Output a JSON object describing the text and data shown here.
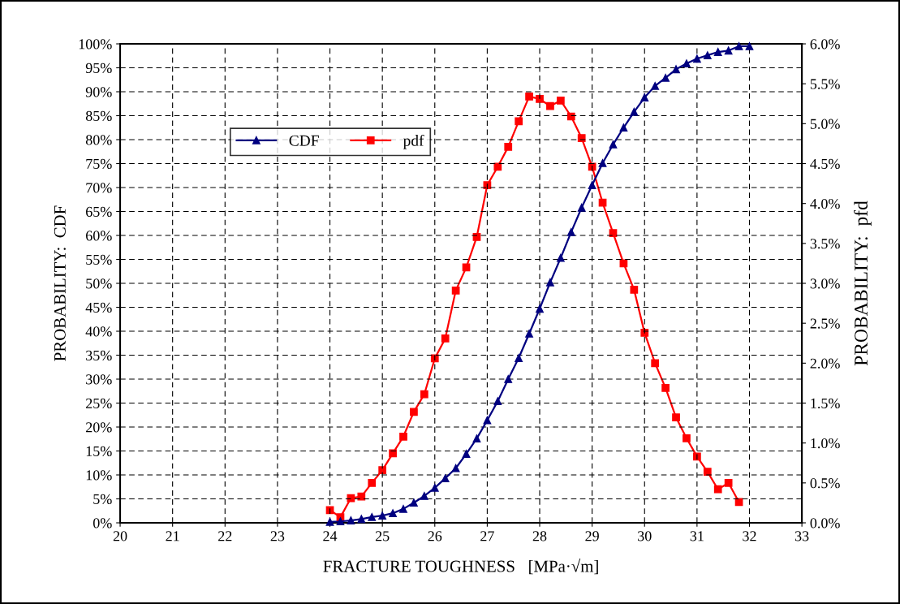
{
  "chart_data": {
    "type": "line",
    "xlabel": "FRACTURE TOUGHNESS   [MPa·√m]",
    "ylabel": "PROBABILITY:  CDF",
    "y2label": "PROBABILITY:  pfd",
    "xlim": [
      20,
      33
    ],
    "xticks": [
      20,
      21,
      22,
      23,
      24,
      25,
      26,
      27,
      28,
      29,
      30,
      31,
      32,
      33
    ],
    "ylim": [
      0,
      100
    ],
    "yticks": [
      {
        "value": 0,
        "label": "0%"
      },
      {
        "value": 5,
        "label": "5%"
      },
      {
        "value": 10,
        "label": "10%"
      },
      {
        "value": 15,
        "label": "15%"
      },
      {
        "value": 20,
        "label": "20%"
      },
      {
        "value": 25,
        "label": "25%"
      },
      {
        "value": 30,
        "label": "30%"
      },
      {
        "value": 35,
        "label": "35%"
      },
      {
        "value": 40,
        "label": "40%"
      },
      {
        "value": 45,
        "label": "45%"
      },
      {
        "value": 50,
        "label": "50%"
      },
      {
        "value": 55,
        "label": "55%"
      },
      {
        "value": 60,
        "label": "60%"
      },
      {
        "value": 65,
        "label": "65%"
      },
      {
        "value": 70,
        "label": "70%"
      },
      {
        "value": 75,
        "label": "75%"
      },
      {
        "value": 80,
        "label": "80%"
      },
      {
        "value": 85,
        "label": "85%"
      },
      {
        "value": 90,
        "label": "90%"
      },
      {
        "value": 95,
        "label": "95%"
      },
      {
        "value": 100,
        "label": "100%"
      }
    ],
    "y2lim": [
      0,
      6
    ],
    "y2ticks": [
      {
        "value": 0,
        "label": "0.0%"
      },
      {
        "value": 0.5,
        "label": "0.5%"
      },
      {
        "value": 1,
        "label": "1.0%"
      },
      {
        "value": 1.5,
        "label": "1.5%"
      },
      {
        "value": 2,
        "label": "2.0%"
      },
      {
        "value": 2.5,
        "label": "2.5%"
      },
      {
        "value": 3,
        "label": "3.0%"
      },
      {
        "value": 3.5,
        "label": "3.5%"
      },
      {
        "value": 4,
        "label": "4.0%"
      },
      {
        "value": 4.5,
        "label": "4.5%"
      },
      {
        "value": 5,
        "label": "5.0%"
      },
      {
        "value": 5.5,
        "label": "5.5%"
      },
      {
        "value": 6,
        "label": "6.0%"
      }
    ],
    "grid": true,
    "legend": "top left",
    "series": [
      {
        "name": "CDF",
        "color": "#000080",
        "marker": "triangle",
        "x": [
          24.0,
          24.2,
          24.4,
          24.6,
          24.8,
          25.0,
          25.2,
          25.4,
          25.6,
          25.8,
          26.0,
          26.2,
          26.4,
          26.6,
          26.8,
          27.0,
          27.2,
          27.4,
          27.6,
          27.8,
          28.0,
          28.2,
          28.4,
          28.6,
          28.8,
          29.0,
          29.2,
          29.4,
          29.6,
          29.8,
          30.0,
          30.2,
          30.4,
          30.6,
          30.8,
          31.0,
          31.2,
          31.4,
          31.6,
          31.8,
          32.0
        ],
        "values": [
          0.2,
          0.3,
          0.5,
          0.8,
          1.2,
          1.5,
          2.0,
          2.9,
          4.2,
          5.6,
          7.3,
          9.3,
          11.4,
          14.4,
          17.6,
          21.4,
          25.4,
          30.0,
          34.4,
          39.5,
          44.7,
          50.2,
          55.3,
          60.7,
          65.8,
          70.5,
          75.1,
          79.0,
          82.5,
          85.8,
          88.8,
          91.2,
          92.9,
          94.7,
          95.9,
          96.9,
          97.6,
          98.3,
          98.6,
          99.5,
          99.5
        ]
      },
      {
        "name": "pdf",
        "color": "#ff0000",
        "marker": "square",
        "axis": "y2",
        "x": [
          24.0,
          24.2,
          24.4,
          24.6,
          24.8,
          25.0,
          25.2,
          25.4,
          25.6,
          25.8,
          26.0,
          26.2,
          26.4,
          26.6,
          26.8,
          27.0,
          27.2,
          27.4,
          27.6,
          27.8,
          28.0,
          28.2,
          28.4,
          28.6,
          28.8,
          29.0,
          29.2,
          29.4,
          29.6,
          29.8,
          30.0,
          30.2,
          30.4,
          30.6,
          30.8,
          31.0,
          31.2,
          31.4,
          31.6,
          31.8
        ],
        "values": [
          0.16,
          0.07,
          0.31,
          0.33,
          0.5,
          0.66,
          0.87,
          1.08,
          1.39,
          1.61,
          2.06,
          2.31,
          2.91,
          3.2,
          3.58,
          4.23,
          4.46,
          4.71,
          5.03,
          5.34,
          5.31,
          5.22,
          5.29,
          5.09,
          4.82,
          4.46,
          4.01,
          3.63,
          3.25,
          2.92,
          2.38,
          2.0,
          1.69,
          1.32,
          1.06,
          0.83,
          0.64,
          0.42,
          0.5,
          0.26
        ]
      }
    ]
  }
}
